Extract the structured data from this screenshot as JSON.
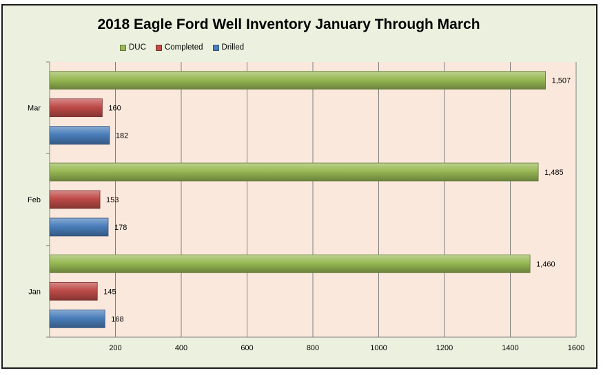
{
  "chart_data": {
    "type": "bar",
    "orientation": "horizontal",
    "title": "2018 Eagle Ford Well Inventory January Through March",
    "categories": [
      "Jan",
      "Feb",
      "Mar"
    ],
    "series": [
      {
        "name": "Drilled",
        "values": [
          168,
          178,
          182
        ],
        "labels": [
          "168",
          "178",
          "182"
        ],
        "color": "#4a7ebb"
      },
      {
        "name": "Completed",
        "values": [
          145,
          153,
          160
        ],
        "labels": [
          "145",
          "153",
          "160"
        ],
        "color": "#be4b48"
      },
      {
        "name": "DUC",
        "values": [
          1460,
          1485,
          1507
        ],
        "labels": [
          "1,460",
          "1,485",
          "1,507"
        ],
        "color": "#98b954"
      }
    ],
    "legend_order": [
      "DUC",
      "Completed",
      "Drilled"
    ],
    "legend_position": "top",
    "xlim": [
      0,
      1600
    ],
    "xticks": [
      200,
      400,
      600,
      800,
      1000,
      1200,
      1400,
      1600
    ],
    "xlabel": "",
    "ylabel": "",
    "grid": true,
    "plot_background": "#fbe8dc"
  }
}
